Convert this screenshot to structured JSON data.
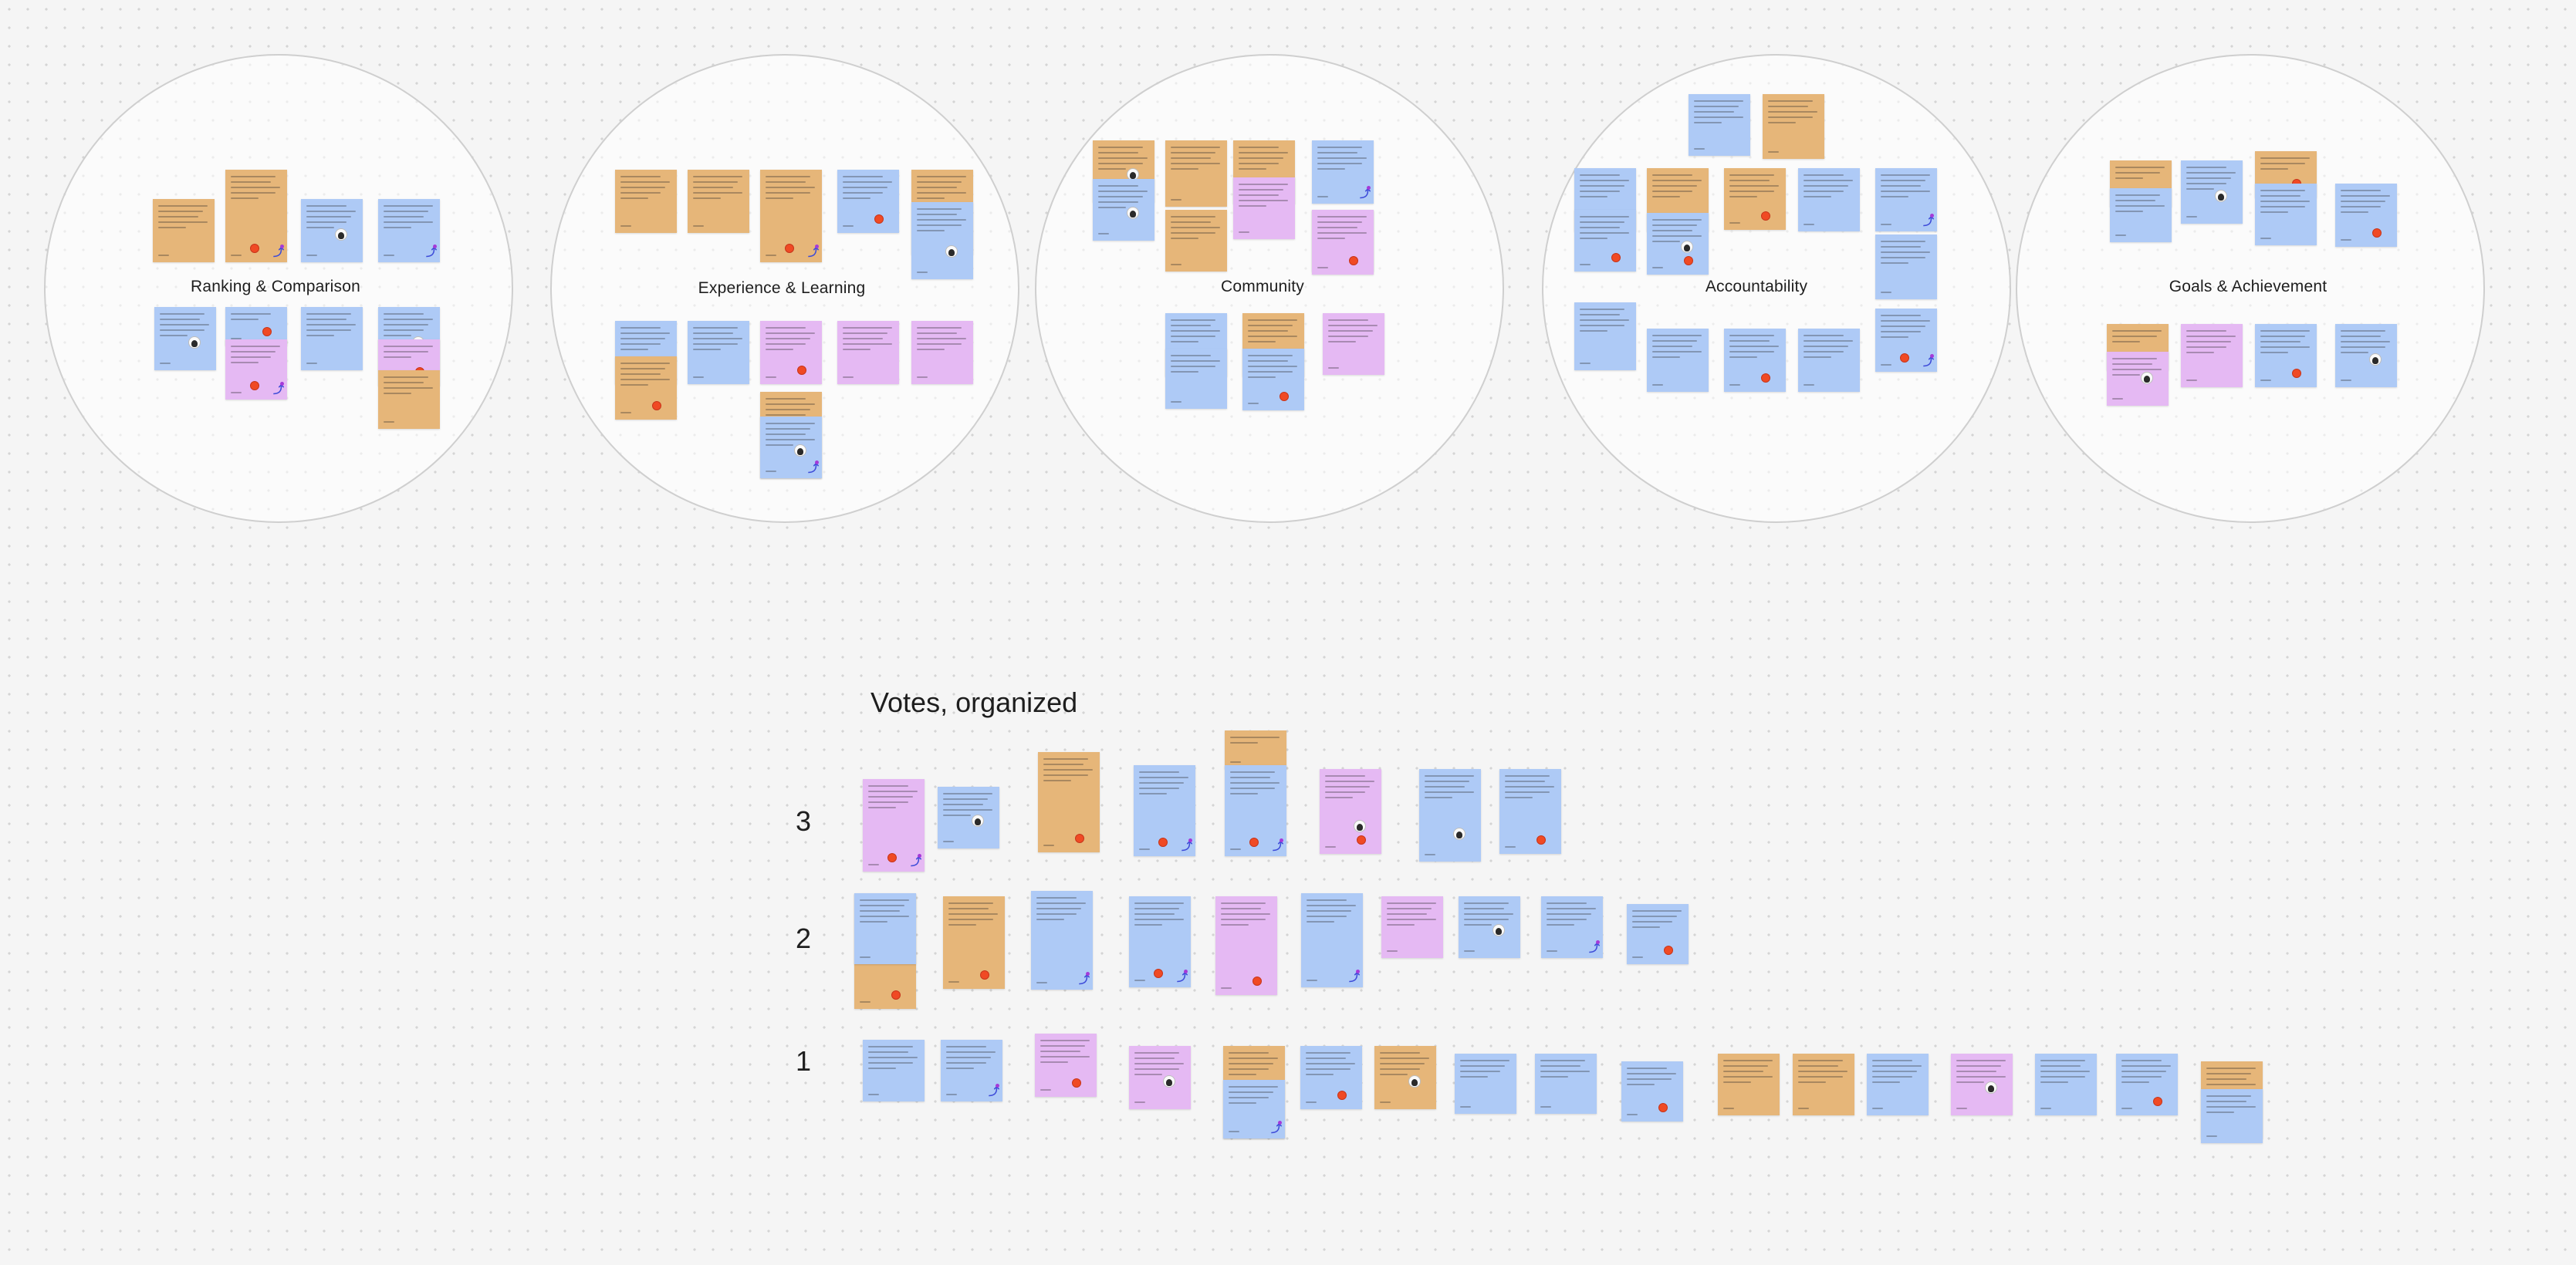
{
  "board": {
    "clusters": [
      {
        "title": "Ranking & Comparison"
      },
      {
        "title": "Experience & Learning"
      },
      {
        "title": "Community"
      },
      {
        "title": "Accountability"
      },
      {
        "title": "Goals & Achievement"
      }
    ],
    "votes_section": {
      "title": "Votes, organized",
      "rows": [
        {
          "label": "3"
        },
        {
          "label": "2"
        },
        {
          "label": "1"
        }
      ]
    },
    "sticky_colors": {
      "blue": "#aecaf6",
      "orange": "#e6b679",
      "pink": "#e5b9f3"
    },
    "marker_colors": {
      "vote_dot": "#f04a24",
      "reaction": "#3d4bd8"
    },
    "icons": [
      "vote-dot-icon",
      "avatar-icon",
      "reaction-icon"
    ]
  }
}
